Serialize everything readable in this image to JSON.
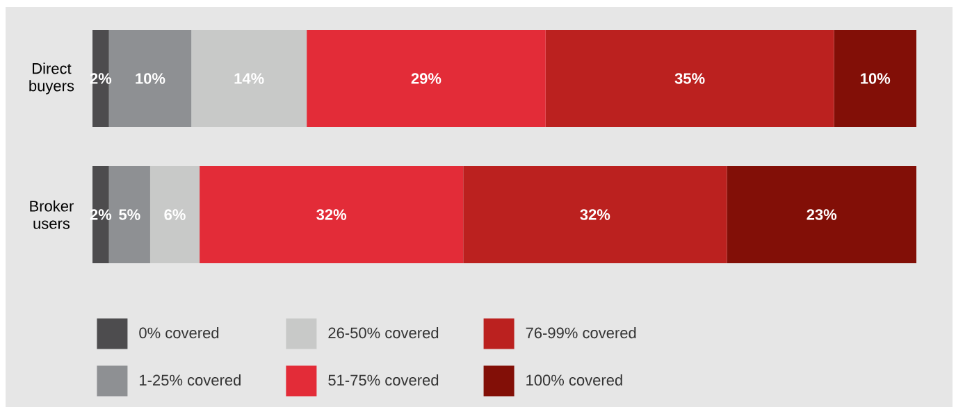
{
  "chart_data": {
    "type": "bar",
    "orientation": "horizontal",
    "stacked": true,
    "categories": [
      "Direct buyers",
      "Broker users"
    ],
    "legend": "bottom",
    "series": [
      {
        "name": "0% covered",
        "color": "#4d4c4e",
        "values": [
          2,
          2
        ],
        "value_labels": [
          "2%",
          "2%"
        ]
      },
      {
        "name": "1-25% covered",
        "color": "#8e9093",
        "values": [
          10,
          5
        ],
        "value_labels": [
          "10%",
          "5%"
        ]
      },
      {
        "name": "26-50% covered",
        "color": "#c8c9c8",
        "values": [
          14,
          6
        ],
        "value_labels": [
          "14%",
          "6%"
        ]
      },
      {
        "name": "51-75% covered",
        "color": "#e32c38",
        "values": [
          29,
          32
        ],
        "value_labels": [
          "29%",
          "32%"
        ]
      },
      {
        "name": "76-99% covered",
        "color": "#bb211f",
        "values": [
          35,
          32
        ],
        "value_labels": [
          "35%",
          "32%"
        ]
      },
      {
        "name": "100% covered",
        "color": "#820f07",
        "values": [
          10,
          23
        ],
        "value_labels": [
          "10%",
          "23%"
        ]
      }
    ]
  }
}
